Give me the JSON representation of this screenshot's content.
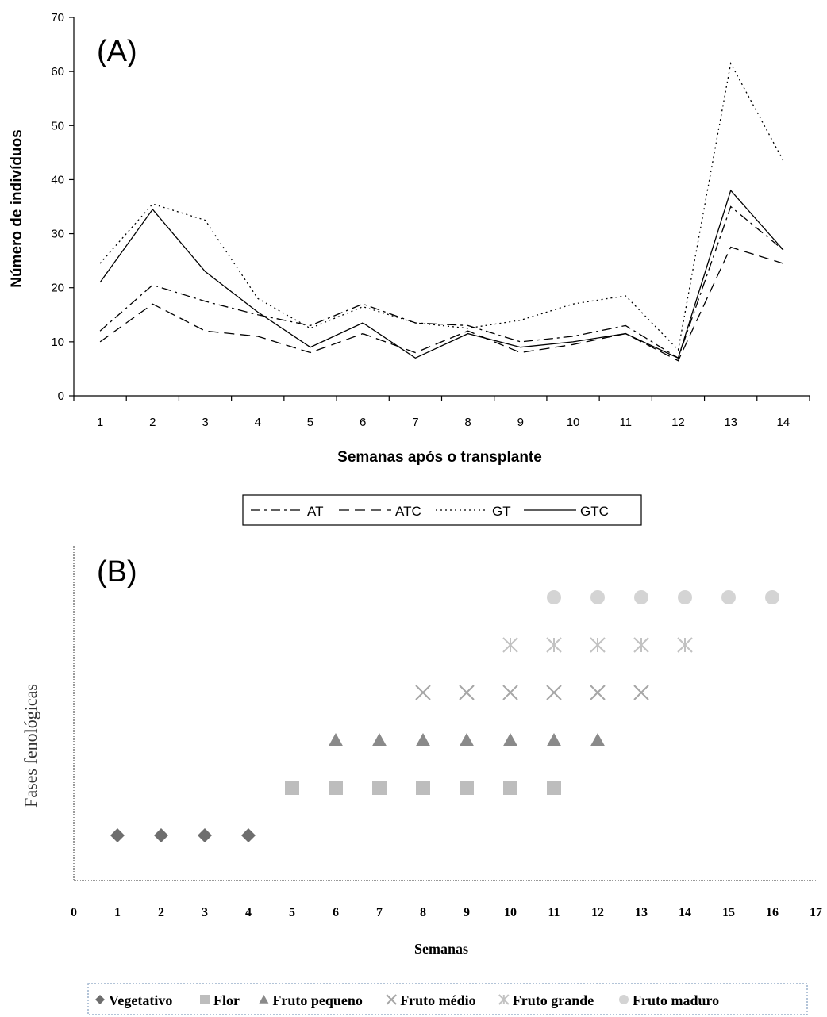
{
  "chart_data": [
    {
      "type": "line",
      "panel_label": "(A)",
      "xlabel": "Semanas após o transplante",
      "ylabel": "Número de indivíduos",
      "x": [
        1,
        2,
        3,
        4,
        5,
        6,
        7,
        8,
        9,
        10,
        11,
        12,
        13,
        14
      ],
      "ylim": [
        0,
        70
      ],
      "yticks": [
        0,
        10,
        20,
        30,
        40,
        50,
        60,
        70
      ],
      "grid": false,
      "legend_position": "bottom",
      "series": [
        {
          "name": "AT",
          "dash": "dash-dot",
          "values": [
            12,
            20.5,
            17.5,
            15,
            13,
            17,
            13.5,
            13,
            10,
            11,
            13,
            7,
            35,
            27
          ]
        },
        {
          "name": "ATC",
          "dash": "dashed",
          "values": [
            10,
            17,
            12,
            11,
            8,
            11.5,
            8,
            12,
            8,
            9.5,
            11.5,
            6.5,
            27.5,
            24.5
          ]
        },
        {
          "name": "GT",
          "dash": "dotted",
          "values": [
            24.5,
            35.5,
            32.5,
            18,
            12.5,
            16.5,
            13.5,
            12.5,
            14,
            17,
            18.5,
            8.5,
            61.5,
            43.5
          ]
        },
        {
          "name": "GTC",
          "dash": "solid",
          "values": [
            21,
            34.5,
            23,
            15.5,
            9,
            13.5,
            7,
            11.5,
            9,
            10,
            11.5,
            7,
            38,
            27
          ]
        }
      ]
    },
    {
      "type": "scatter",
      "panel_label": "(B)",
      "xlabel": "Semanas",
      "ylabel": "Fases fenológicas",
      "xlim": [
        0,
        17
      ],
      "xticks": [
        0,
        1,
        2,
        3,
        4,
        5,
        6,
        7,
        8,
        9,
        10,
        11,
        12,
        13,
        14,
        15,
        16,
        17
      ],
      "grid": false,
      "legend_position": "bottom",
      "series": [
        {
          "name": "Vegetativo",
          "marker": "diamond",
          "color": "#6e6e6e",
          "level": 1,
          "x": [
            1,
            2,
            3,
            4
          ]
        },
        {
          "name": "Flor",
          "marker": "square",
          "color": "#bdbdbd",
          "level": 2,
          "x": [
            5,
            6,
            7,
            8,
            9,
            10,
            11
          ]
        },
        {
          "name": "Fruto pequeno",
          "marker": "triangle",
          "color": "#8a8a8a",
          "level": 3,
          "x": [
            6,
            7,
            8,
            9,
            10,
            11,
            12
          ]
        },
        {
          "name": "Fruto médio",
          "marker": "x",
          "color": "#a6a6a6",
          "level": 4,
          "x": [
            8,
            9,
            10,
            11,
            12,
            13
          ]
        },
        {
          "name": "Fruto grande",
          "marker": "star",
          "color": "#c2c2c2",
          "level": 5,
          "x": [
            10,
            11,
            12,
            13,
            14
          ]
        },
        {
          "name": "Fruto maduro",
          "marker": "circle",
          "color": "#d4d4d4",
          "level": 6,
          "x": [
            11,
            12,
            13,
            14,
            15,
            16
          ]
        }
      ]
    }
  ]
}
